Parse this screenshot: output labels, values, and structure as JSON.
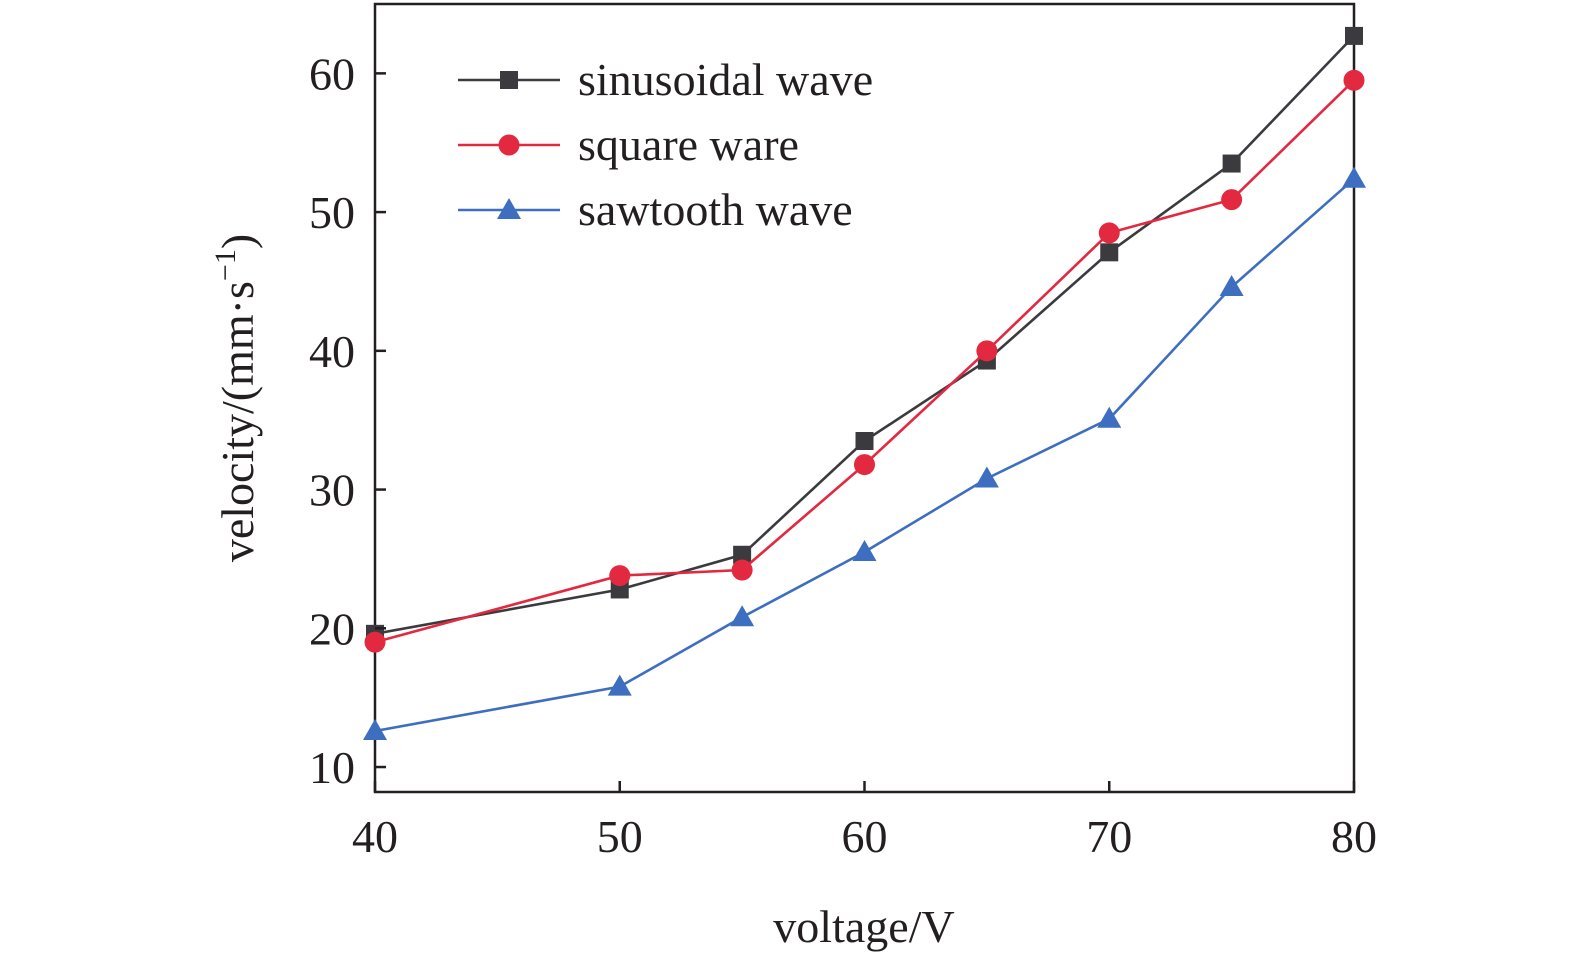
{
  "chart_data": {
    "type": "line",
    "xlabel": "voltage/V",
    "ylabel": {
      "main": "velocity/(mm·s",
      "superscript": "−1",
      "close": ")"
    },
    "x_ticks": [
      "40",
      "50",
      "60",
      "70",
      "80"
    ],
    "y_ticks": [
      "10",
      "20",
      "30",
      "40",
      "50",
      "60"
    ],
    "xlim": [
      40,
      80
    ],
    "ylim": [
      8.2,
      65
    ],
    "grid": false,
    "legend_position": "top-left",
    "x": [
      40,
      50,
      55,
      60,
      65,
      70,
      75,
      80
    ],
    "series": [
      {
        "name": "sinusoidal wave",
        "color": "#3b3b3f",
        "marker": "square",
        "values": [
          19.6,
          22.8,
          25.3,
          33.5,
          39.3,
          47.1,
          53.5,
          62.7
        ]
      },
      {
        "name": "square ware",
        "color": "#e3293f",
        "marker": "circle",
        "values": [
          19.0,
          23.8,
          24.2,
          31.8,
          40.0,
          48.5,
          50.9,
          59.5
        ]
      },
      {
        "name": "sawtooth wave",
        "color": "#3e6ebf",
        "marker": "triangle",
        "values": [
          12.6,
          15.8,
          20.8,
          25.5,
          30.8,
          35.1,
          44.6,
          52.4
        ]
      }
    ]
  }
}
